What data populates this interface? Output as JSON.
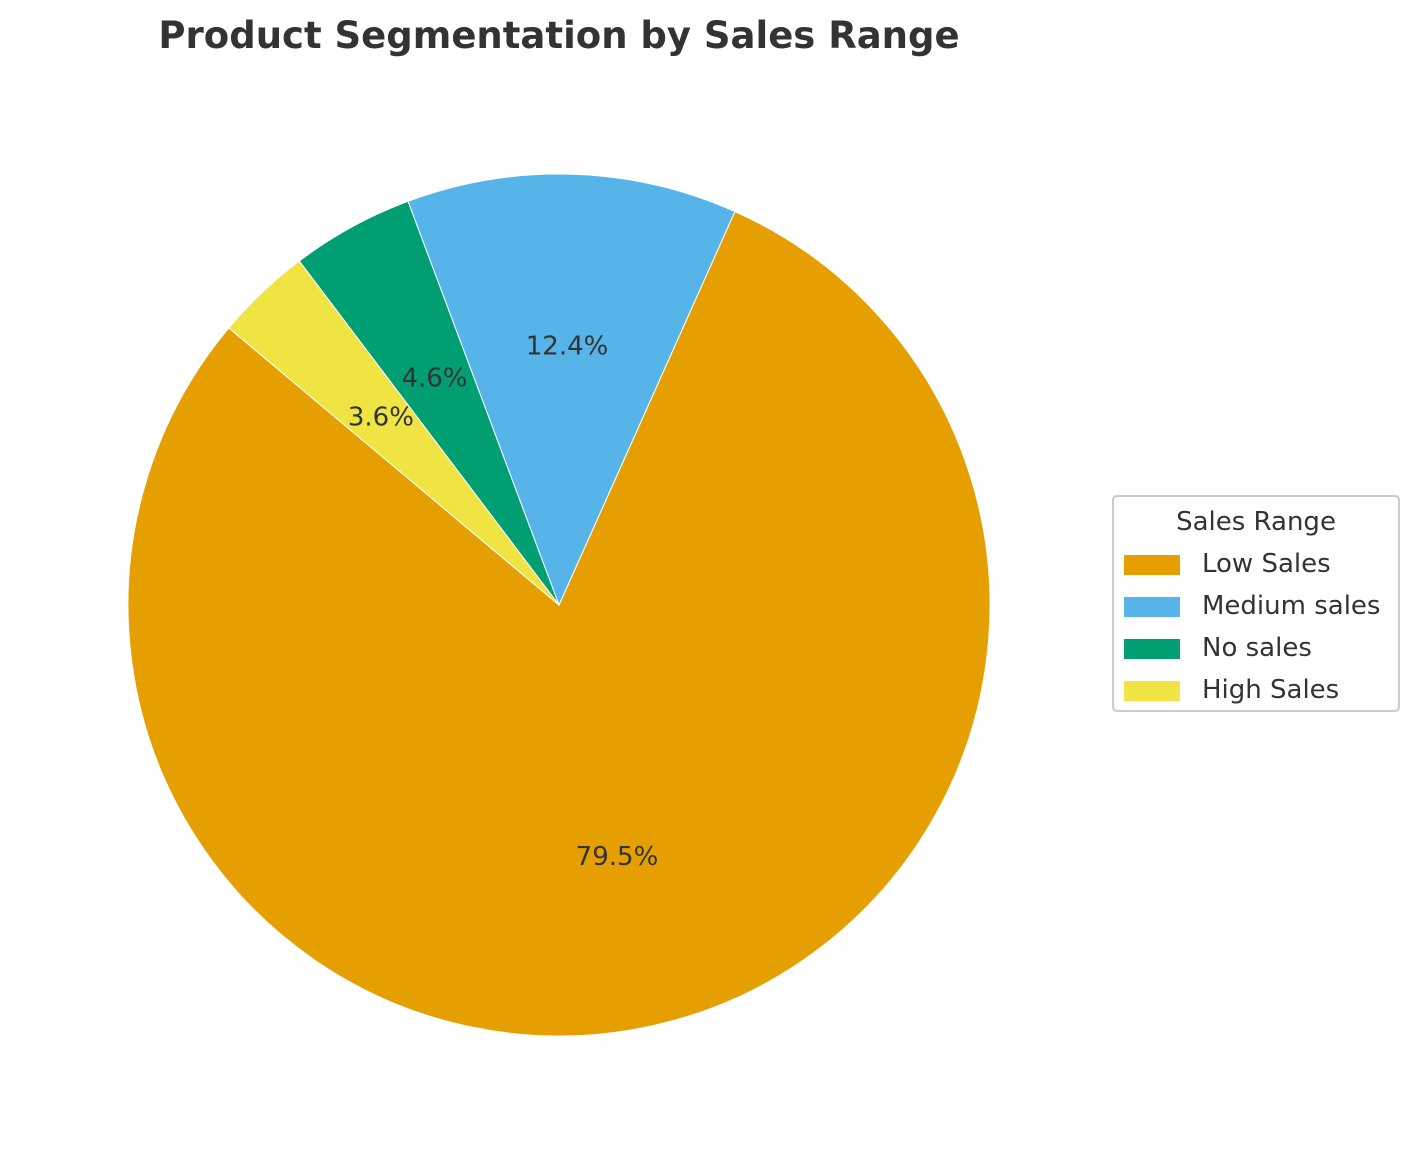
{
  "chart_data": {
    "type": "pie",
    "title": "Product Segmentation by Sales Range",
    "categories": [
      "Low Sales",
      "Medium sales",
      "No sales",
      "High Sales"
    ],
    "values": [
      79.5,
      12.4,
      4.6,
      3.6
    ],
    "value_labels": [
      "79.5%",
      "12.4%",
      "4.6%",
      "3.6%"
    ],
    "colors": [
      "#E69F00",
      "#56B4E9",
      "#009E73",
      "#F0E442"
    ],
    "start_angle_deg": 140,
    "direction": "counterclockwise",
    "legend": {
      "title": "Sales Range",
      "placement": "right",
      "entries": [
        "Low Sales",
        "Medium sales",
        "No sales",
        "High Sales"
      ]
    }
  }
}
